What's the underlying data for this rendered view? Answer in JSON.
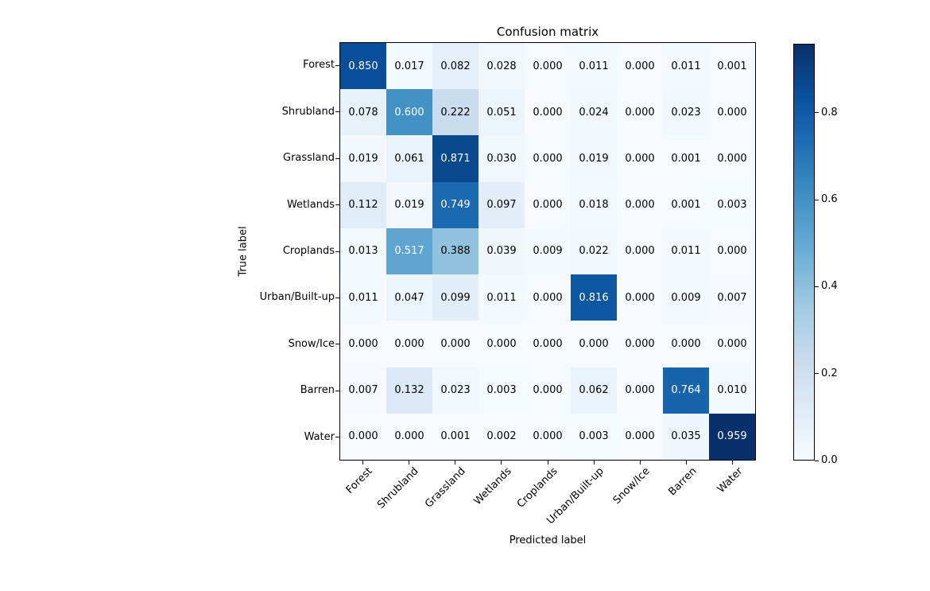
{
  "chart_data": {
    "type": "heatmap",
    "title": "Confusion matrix",
    "xlabel": "Predicted label",
    "ylabel": "True label",
    "categories": [
      "Forest",
      "Shrubland",
      "Grassland",
      "Wetlands",
      "Croplands",
      "Urban/Built-up",
      "Snow/Ice",
      "Barren",
      "Water"
    ],
    "x_tick_labels": [
      "Forest",
      "Shrubland",
      "Grassland",
      "Wetlands",
      "Croplands",
      "Urban/Built-up",
      "Snow/Ice",
      "Barren",
      "Water"
    ],
    "y_tick_labels": [
      "Forest",
      "Shrubland",
      "Grassland",
      "Wetlands",
      "Croplands",
      "Urban/Built-up",
      "Snow/Ice",
      "Barren",
      "Water"
    ],
    "matrix": [
      [
        0.85,
        0.017,
        0.082,
        0.028,
        0.0,
        0.011,
        0.0,
        0.011,
        0.001
      ],
      [
        0.078,
        0.6,
        0.222,
        0.051,
        0.0,
        0.024,
        0.0,
        0.023,
        0.0
      ],
      [
        0.019,
        0.061,
        0.871,
        0.03,
        0.0,
        0.019,
        0.0,
        0.001,
        0.0
      ],
      [
        0.112,
        0.019,
        0.749,
        0.097,
        0.0,
        0.018,
        0.0,
        0.001,
        0.003
      ],
      [
        0.013,
        0.517,
        0.388,
        0.039,
        0.009,
        0.022,
        0.0,
        0.011,
        0.0
      ],
      [
        0.011,
        0.047,
        0.099,
        0.011,
        0.0,
        0.816,
        0.0,
        0.009,
        0.007
      ],
      [
        0.0,
        0.0,
        0.0,
        0.0,
        0.0,
        0.0,
        0.0,
        0.0,
        0.0
      ],
      [
        0.007,
        0.132,
        0.023,
        0.003,
        0.0,
        0.062,
        0.0,
        0.764,
        0.01
      ],
      [
        0.0,
        0.0,
        0.001,
        0.002,
        0.0,
        0.003,
        0.0,
        0.035,
        0.959
      ]
    ],
    "value_decimals": 3,
    "vmin": 0.0,
    "vmax": 0.959,
    "grid": false,
    "colormap": {
      "name": "Blues",
      "anchors": [
        "#f7fbff",
        "#deebf7",
        "#c6dbef",
        "#9ecae1",
        "#6baed6",
        "#4292c6",
        "#2171b5",
        "#08519c",
        "#08306b"
      ]
    },
    "cell_text_colors": {
      "dark": "#000000",
      "light": "#ffffff"
    },
    "colorbar": {
      "position": "right",
      "ticks": [
        0.0,
        0.2,
        0.4,
        0.6,
        0.8
      ],
      "tick_labels": [
        "0.0",
        "0.2",
        "0.4",
        "0.6",
        "0.8"
      ]
    }
  }
}
